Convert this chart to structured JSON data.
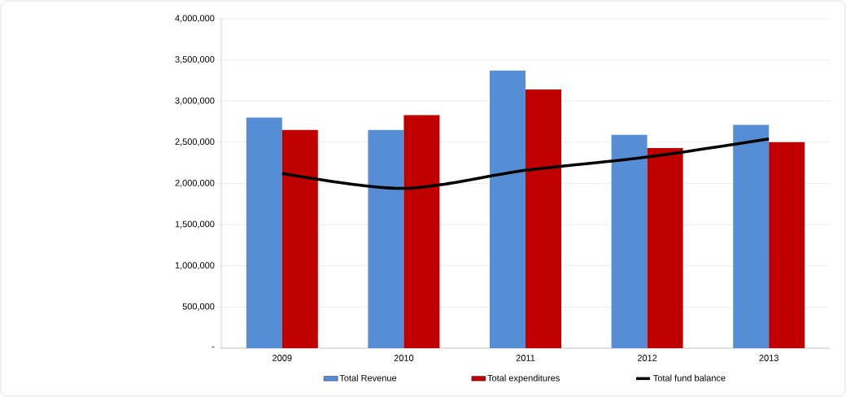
{
  "chart_data": {
    "type": "bar",
    "categories": [
      "2009",
      "2010",
      "2011",
      "2012",
      "2013"
    ],
    "series": [
      {
        "name": "Total Revenue",
        "color": "#558ed5",
        "values": [
          2800000,
          2650000,
          3370000,
          2590000,
          2710000
        ]
      },
      {
        "name": "Total expenditures",
        "color": "#c00000",
        "values": [
          2650000,
          2830000,
          3140000,
          2430000,
          2500000
        ]
      },
      {
        "name": "Total fund balance",
        "type": "line",
        "color": "#000000",
        "values": [
          2120000,
          1940000,
          2160000,
          2320000,
          2540000
        ]
      }
    ],
    "ylim": [
      0,
      4000000
    ],
    "yticks": [
      {
        "value": 0,
        "label": "-"
      },
      {
        "value": 500000,
        "label": "500,000"
      },
      {
        "value": 1000000,
        "label": "1,000,000"
      },
      {
        "value": 1500000,
        "label": "1,500,000"
      },
      {
        "value": 2000000,
        "label": "2,000,000"
      },
      {
        "value": 2500000,
        "label": "2,500,000"
      },
      {
        "value": 3000000,
        "label": "3,000,000"
      },
      {
        "value": 3500000,
        "label": "3,500,000"
      },
      {
        "value": 4000000,
        "label": "4,000,000"
      }
    ],
    "grid": "y",
    "legend": "bottom"
  }
}
